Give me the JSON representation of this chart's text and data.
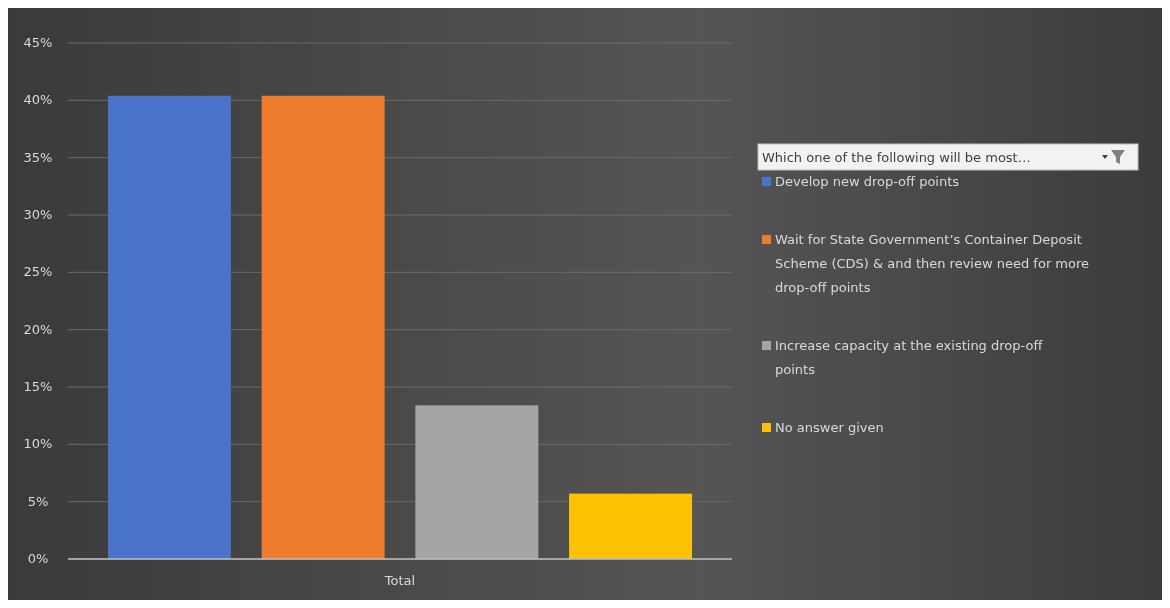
{
  "chart_data": {
    "type": "bar",
    "legend_title": "Which one of the following will be most…",
    "categories": [
      "Total"
    ],
    "series": [
      {
        "name": "Develop new drop-off points",
        "color": "#4a74c9",
        "values": [
          40.4
        ]
      },
      {
        "name": "Wait for State Government’s Container Deposit Scheme (CDS) & and then review need for more drop-off points",
        "color": "#ee7d30",
        "values": [
          40.4
        ]
      },
      {
        "name": "Increase capacity at the existing drop-off points",
        "color": "#a5a5a5",
        "values": [
          13.4
        ]
      },
      {
        "name": "No answer given",
        "color": "#fcc101",
        "values": [
          5.7
        ]
      }
    ],
    "ylim": [
      0,
      45
    ],
    "yticks": [
      {
        "value": 0,
        "label": "0%"
      },
      {
        "value": 5,
        "label": "5%"
      },
      {
        "value": 10,
        "label": "10%"
      },
      {
        "value": 15,
        "label": "15%"
      },
      {
        "value": 20,
        "label": "20%"
      },
      {
        "value": 25,
        "label": "25%"
      },
      {
        "value": 30,
        "label": "30%"
      },
      {
        "value": 35,
        "label": "35%"
      },
      {
        "value": 40,
        "label": "40%"
      },
      {
        "value": 45,
        "label": "45%"
      }
    ],
    "grid": "y",
    "legend": "right"
  }
}
